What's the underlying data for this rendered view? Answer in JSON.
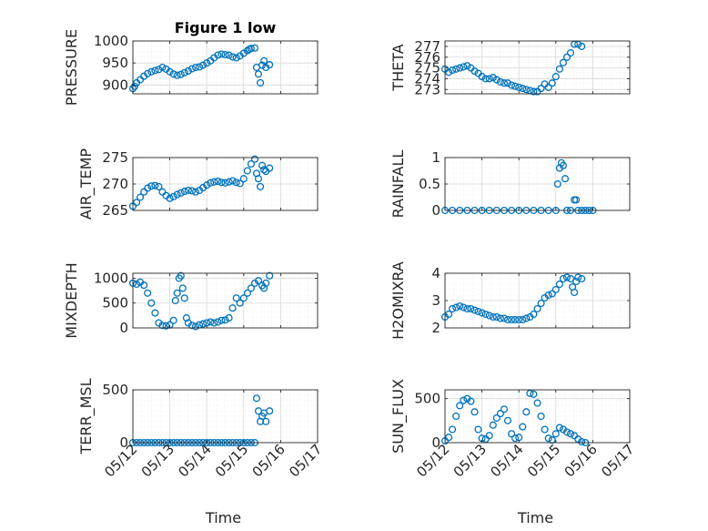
{
  "figure_title": "Figure 1 low",
  "colors": {
    "marker": "#0072BD",
    "axis": "#262626"
  },
  "chart_data": [
    {
      "type": "scatter",
      "id": "pressure",
      "title": "Figure 1 low",
      "ylabel": "PRESSURE",
      "xlabel": "",
      "xlim": [
        0,
        5
      ],
      "ylim": [
        880,
        1000
      ],
      "yticks": [
        900,
        950,
        1000
      ],
      "xtick_labels": [],
      "grid": "on",
      "points": [
        [
          0.0,
          892
        ],
        [
          0.05,
          897
        ],
        [
          0.1,
          905
        ],
        [
          0.2,
          912
        ],
        [
          0.3,
          920
        ],
        [
          0.4,
          926
        ],
        [
          0.5,
          930
        ],
        [
          0.6,
          933
        ],
        [
          0.7,
          935
        ],
        [
          0.8,
          940
        ],
        [
          0.9,
          936
        ],
        [
          1.0,
          930
        ],
        [
          1.1,
          925
        ],
        [
          1.2,
          922
        ],
        [
          1.3,
          924
        ],
        [
          1.4,
          928
        ],
        [
          1.5,
          932
        ],
        [
          1.6,
          937
        ],
        [
          1.7,
          940
        ],
        [
          1.8,
          941
        ],
        [
          1.9,
          945
        ],
        [
          2.0,
          950
        ],
        [
          2.1,
          955
        ],
        [
          2.2,
          962
        ],
        [
          2.3,
          968
        ],
        [
          2.4,
          970
        ],
        [
          2.5,
          969
        ],
        [
          2.6,
          968
        ],
        [
          2.7,
          964
        ],
        [
          2.8,
          962
        ],
        [
          2.9,
          966
        ],
        [
          3.0,
          972
        ],
        [
          3.1,
          978
        ],
        [
          3.15,
          981
        ],
        [
          3.2,
          983
        ],
        [
          3.3,
          984
        ],
        [
          3.35,
          940
        ],
        [
          3.4,
          925
        ],
        [
          3.45,
          905
        ],
        [
          3.5,
          945
        ],
        [
          3.55,
          955
        ],
        [
          3.6,
          940
        ],
        [
          3.7,
          946
        ]
      ]
    },
    {
      "type": "scatter",
      "id": "theta",
      "ylabel": "THETA",
      "xlabel": "",
      "xlim": [
        0,
        5
      ],
      "ylim": [
        272.6,
        277.5
      ],
      "yticks": [
        273,
        274,
        275,
        276,
        277
      ],
      "xtick_labels": [],
      "grid": "on",
      "points": [
        [
          0.0,
          274.9
        ],
        [
          0.1,
          274.6
        ],
        [
          0.2,
          274.8
        ],
        [
          0.3,
          274.9
        ],
        [
          0.4,
          275.0
        ],
        [
          0.5,
          275.1
        ],
        [
          0.6,
          275.2
        ],
        [
          0.7,
          275.0
        ],
        [
          0.8,
          274.7
        ],
        [
          0.9,
          274.5
        ],
        [
          1.0,
          274.2
        ],
        [
          1.1,
          274.0
        ],
        [
          1.2,
          274.0
        ],
        [
          1.3,
          274.1
        ],
        [
          1.4,
          273.9
        ],
        [
          1.5,
          273.7
        ],
        [
          1.6,
          273.6
        ],
        [
          1.7,
          273.6
        ],
        [
          1.8,
          273.4
        ],
        [
          1.9,
          273.3
        ],
        [
          2.0,
          273.2
        ],
        [
          2.1,
          273.1
        ],
        [
          2.2,
          273.0
        ],
        [
          2.3,
          272.9
        ],
        [
          2.4,
          272.8
        ],
        [
          2.5,
          272.8
        ],
        [
          2.6,
          273.1
        ],
        [
          2.7,
          273.5
        ],
        [
          2.8,
          273.2
        ],
        [
          2.9,
          273.6
        ],
        [
          3.0,
          274.2
        ],
        [
          3.1,
          274.9
        ],
        [
          3.2,
          275.5
        ],
        [
          3.3,
          276.0
        ],
        [
          3.4,
          276.4
        ],
        [
          3.5,
          277.2
        ],
        [
          3.6,
          277.2
        ],
        [
          3.7,
          277.0
        ]
      ]
    },
    {
      "type": "scatter",
      "id": "air_temp",
      "ylabel": "AIR_TEMP",
      "xlabel": "",
      "xlim": [
        0,
        5
      ],
      "ylim": [
        265,
        275
      ],
      "yticks": [
        265,
        270,
        275
      ],
      "xtick_labels": [],
      "grid": "on",
      "points": [
        [
          0.0,
          265.8
        ],
        [
          0.1,
          266.5
        ],
        [
          0.2,
          267.5
        ],
        [
          0.3,
          268.5
        ],
        [
          0.4,
          269.2
        ],
        [
          0.5,
          269.6
        ],
        [
          0.6,
          269.7
        ],
        [
          0.7,
          269.5
        ],
        [
          0.8,
          268.5
        ],
        [
          0.9,
          267.8
        ],
        [
          1.0,
          267.3
        ],
        [
          1.1,
          267.6
        ],
        [
          1.2,
          268.0
        ],
        [
          1.3,
          268.3
        ],
        [
          1.4,
          268.6
        ],
        [
          1.5,
          268.8
        ],
        [
          1.6,
          268.7
        ],
        [
          1.7,
          268.5
        ],
        [
          1.8,
          268.8
        ],
        [
          1.9,
          269.3
        ],
        [
          2.0,
          269.8
        ],
        [
          2.1,
          270.2
        ],
        [
          2.2,
          270.4
        ],
        [
          2.3,
          270.5
        ],
        [
          2.4,
          270.3
        ],
        [
          2.5,
          270.2
        ],
        [
          2.6,
          270.4
        ],
        [
          2.7,
          270.6
        ],
        [
          2.8,
          270.3
        ],
        [
          2.9,
          270.1
        ],
        [
          3.0,
          271.0
        ],
        [
          3.1,
          272.5
        ],
        [
          3.2,
          273.8
        ],
        [
          3.3,
          274.7
        ],
        [
          3.35,
          272.0
        ],
        [
          3.4,
          271.0
        ],
        [
          3.45,
          269.5
        ],
        [
          3.5,
          273.5
        ],
        [
          3.55,
          272.7
        ],
        [
          3.6,
          272.4
        ],
        [
          3.7,
          273.0
        ]
      ]
    },
    {
      "type": "scatter",
      "id": "rainfall",
      "ylabel": "RAINFALL",
      "xlabel": "",
      "xlim": [
        0,
        5
      ],
      "ylim": [
        0,
        1
      ],
      "yticks": [
        0,
        0.5,
        1
      ],
      "xtick_labels": [],
      "grid": "on",
      "points": [
        [
          0.0,
          0
        ],
        [
          0.2,
          0
        ],
        [
          0.4,
          0
        ],
        [
          0.6,
          0
        ],
        [
          0.8,
          0
        ],
        [
          1.0,
          0
        ],
        [
          1.2,
          0
        ],
        [
          1.4,
          0
        ],
        [
          1.6,
          0
        ],
        [
          1.8,
          0
        ],
        [
          2.0,
          0
        ],
        [
          2.2,
          0
        ],
        [
          2.4,
          0
        ],
        [
          2.6,
          0
        ],
        [
          2.8,
          0
        ],
        [
          3.0,
          0
        ],
        [
          3.05,
          0.5
        ],
        [
          3.1,
          0.8
        ],
        [
          3.15,
          0.9
        ],
        [
          3.2,
          0.85
        ],
        [
          3.25,
          0.6
        ],
        [
          3.3,
          0
        ],
        [
          3.4,
          0
        ],
        [
          3.5,
          0.2
        ],
        [
          3.55,
          0.2
        ],
        [
          3.6,
          0
        ],
        [
          3.7,
          0
        ],
        [
          3.8,
          0
        ],
        [
          3.9,
          0
        ],
        [
          4.0,
          0
        ]
      ]
    },
    {
      "type": "scatter",
      "id": "mixdepth",
      "ylabel": "MIXDEPTH",
      "xlabel": "",
      "xlim": [
        0,
        5
      ],
      "ylim": [
        0,
        1100
      ],
      "yticks": [
        0,
        500,
        1000
      ],
      "xtick_labels": [],
      "grid": "on",
      "points": [
        [
          0.0,
          900
        ],
        [
          0.1,
          880
        ],
        [
          0.2,
          920
        ],
        [
          0.3,
          860
        ],
        [
          0.4,
          700
        ],
        [
          0.5,
          500
        ],
        [
          0.6,
          300
        ],
        [
          0.7,
          100
        ],
        [
          0.8,
          50
        ],
        [
          0.9,
          40
        ],
        [
          1.0,
          60
        ],
        [
          1.1,
          150
        ],
        [
          1.15,
          550
        ],
        [
          1.2,
          700
        ],
        [
          1.25,
          1000
        ],
        [
          1.3,
          1050
        ],
        [
          1.35,
          800
        ],
        [
          1.4,
          600
        ],
        [
          1.45,
          200
        ],
        [
          1.5,
          100
        ],
        [
          1.6,
          50
        ],
        [
          1.7,
          30
        ],
        [
          1.8,
          60
        ],
        [
          1.9,
          80
        ],
        [
          2.0,
          100
        ],
        [
          2.1,
          120
        ],
        [
          2.2,
          100
        ],
        [
          2.3,
          120
        ],
        [
          2.4,
          150
        ],
        [
          2.5,
          160
        ],
        [
          2.6,
          200
        ],
        [
          2.7,
          400
        ],
        [
          2.8,
          600
        ],
        [
          2.9,
          500
        ],
        [
          3.0,
          600
        ],
        [
          3.1,
          700
        ],
        [
          3.2,
          800
        ],
        [
          3.3,
          900
        ],
        [
          3.4,
          950
        ],
        [
          3.5,
          850
        ],
        [
          3.55,
          800
        ],
        [
          3.6,
          900
        ],
        [
          3.7,
          1050
        ]
      ]
    },
    {
      "type": "scatter",
      "id": "h2omixra",
      "ylabel": "H2OMIXRA",
      "xlabel": "",
      "xlim": [
        0,
        5
      ],
      "ylim": [
        2,
        4
      ],
      "yticks": [
        2,
        3,
        4
      ],
      "xtick_labels": [],
      "grid": "on",
      "points": [
        [
          0.0,
          2.4
        ],
        [
          0.1,
          2.5
        ],
        [
          0.2,
          2.7
        ],
        [
          0.3,
          2.75
        ],
        [
          0.4,
          2.8
        ],
        [
          0.5,
          2.75
        ],
        [
          0.6,
          2.7
        ],
        [
          0.7,
          2.7
        ],
        [
          0.8,
          2.65
        ],
        [
          0.9,
          2.6
        ],
        [
          1.0,
          2.55
        ],
        [
          1.1,
          2.5
        ],
        [
          1.2,
          2.45
        ],
        [
          1.3,
          2.4
        ],
        [
          1.4,
          2.4
        ],
        [
          1.5,
          2.35
        ],
        [
          1.6,
          2.35
        ],
        [
          1.7,
          2.3
        ],
        [
          1.8,
          2.3
        ],
        [
          1.9,
          2.3
        ],
        [
          2.0,
          2.3
        ],
        [
          2.1,
          2.3
        ],
        [
          2.2,
          2.35
        ],
        [
          2.3,
          2.4
        ],
        [
          2.4,
          2.5
        ],
        [
          2.5,
          2.7
        ],
        [
          2.6,
          2.9
        ],
        [
          2.7,
          3.1
        ],
        [
          2.8,
          3.2
        ],
        [
          2.9,
          3.25
        ],
        [
          3.0,
          3.4
        ],
        [
          3.1,
          3.6
        ],
        [
          3.2,
          3.8
        ],
        [
          3.3,
          3.85
        ],
        [
          3.4,
          3.8
        ],
        [
          3.45,
          3.5
        ],
        [
          3.5,
          3.3
        ],
        [
          3.55,
          3.7
        ],
        [
          3.6,
          3.85
        ],
        [
          3.7,
          3.8
        ]
      ]
    },
    {
      "type": "scatter",
      "id": "terr_msl",
      "ylabel": "TERR_MSL",
      "xlabel": "Time",
      "xlim": [
        0,
        5
      ],
      "ylim": [
        0,
        500
      ],
      "yticks": [
        0,
        500
      ],
      "xtick_labels": [
        "05/12",
        "05/13",
        "05/14",
        "05/15",
        "05/16",
        "05/17"
      ],
      "grid": "on",
      "points": [
        [
          0.0,
          0
        ],
        [
          0.1,
          0
        ],
        [
          0.2,
          0
        ],
        [
          0.3,
          0
        ],
        [
          0.4,
          0
        ],
        [
          0.5,
          0
        ],
        [
          0.6,
          0
        ],
        [
          0.7,
          0
        ],
        [
          0.8,
          0
        ],
        [
          0.9,
          0
        ],
        [
          1.0,
          0
        ],
        [
          1.1,
          0
        ],
        [
          1.2,
          0
        ],
        [
          1.3,
          0
        ],
        [
          1.4,
          0
        ],
        [
          1.5,
          0
        ],
        [
          1.6,
          0
        ],
        [
          1.7,
          0
        ],
        [
          1.8,
          0
        ],
        [
          1.9,
          0
        ],
        [
          2.0,
          0
        ],
        [
          2.1,
          0
        ],
        [
          2.2,
          0
        ],
        [
          2.3,
          0
        ],
        [
          2.4,
          0
        ],
        [
          2.5,
          0
        ],
        [
          2.6,
          0
        ],
        [
          2.7,
          0
        ],
        [
          2.8,
          0
        ],
        [
          2.9,
          0
        ],
        [
          3.0,
          0
        ],
        [
          3.1,
          0
        ],
        [
          3.2,
          0
        ],
        [
          3.3,
          0
        ],
        [
          3.35,
          420
        ],
        [
          3.4,
          300
        ],
        [
          3.45,
          200
        ],
        [
          3.5,
          250
        ],
        [
          3.55,
          280
        ],
        [
          3.6,
          200
        ],
        [
          3.7,
          300
        ]
      ]
    },
    {
      "type": "scatter",
      "id": "sun_flux",
      "ylabel": "SUN_FLUX",
      "xlabel": "Time",
      "xlim": [
        0,
        5
      ],
      "ylim": [
        0,
        600
      ],
      "yticks": [
        0,
        500
      ],
      "xtick_labels": [
        "05/12",
        "05/13",
        "05/14",
        "05/15",
        "05/16",
        "05/17"
      ],
      "grid": "on",
      "points": [
        [
          0.0,
          20
        ],
        [
          0.1,
          60
        ],
        [
          0.2,
          150
        ],
        [
          0.3,
          300
        ],
        [
          0.4,
          420
        ],
        [
          0.5,
          480
        ],
        [
          0.6,
          500
        ],
        [
          0.7,
          470
        ],
        [
          0.8,
          350
        ],
        [
          0.9,
          150
        ],
        [
          1.0,
          50
        ],
        [
          1.1,
          40
        ],
        [
          1.2,
          80
        ],
        [
          1.3,
          200
        ],
        [
          1.4,
          280
        ],
        [
          1.5,
          330
        ],
        [
          1.6,
          380
        ],
        [
          1.7,
          250
        ],
        [
          1.8,
          100
        ],
        [
          1.9,
          50
        ],
        [
          2.0,
          60
        ],
        [
          2.1,
          180
        ],
        [
          2.2,
          350
        ],
        [
          2.3,
          560
        ],
        [
          2.4,
          550
        ],
        [
          2.5,
          450
        ],
        [
          2.6,
          300
        ],
        [
          2.7,
          150
        ],
        [
          2.8,
          50
        ],
        [
          2.9,
          30
        ],
        [
          3.0,
          100
        ],
        [
          3.1,
          170
        ],
        [
          3.2,
          150
        ],
        [
          3.3,
          120
        ],
        [
          3.4,
          100
        ],
        [
          3.5,
          80
        ],
        [
          3.6,
          40
        ],
        [
          3.7,
          10
        ],
        [
          3.8,
          0
        ]
      ]
    }
  ]
}
